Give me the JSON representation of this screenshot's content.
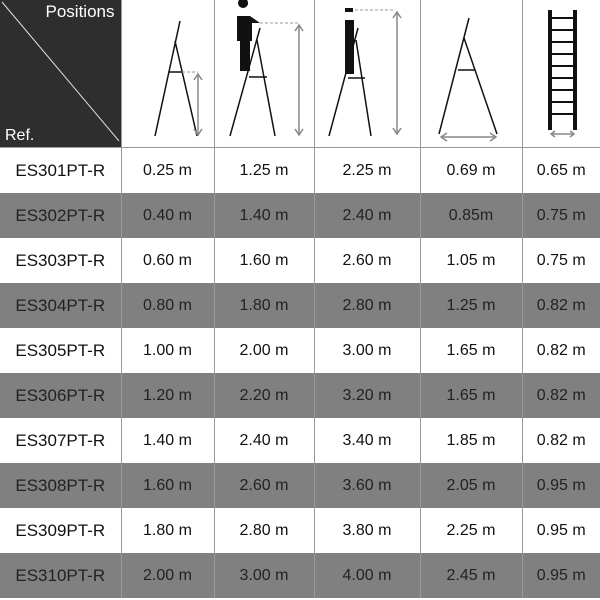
{
  "header": {
    "positions_label": "Positions",
    "ref_label": "Ref.",
    "columns": [
      {
        "icon": "stepladder-step-height-icon"
      },
      {
        "icon": "stepladder-working-height-man-icon"
      },
      {
        "icon": "stepladder-reach-height-man-icon"
      },
      {
        "icon": "stepladder-base-width-icon"
      },
      {
        "icon": "ladder-width-icon"
      }
    ]
  },
  "colors": {
    "gray_row": "#808080",
    "header_corner": "#2e2e2e",
    "arrow": "#888888"
  },
  "rows": [
    {
      "ref": "ES301PT-R",
      "values": [
        "0.25 m",
        "1.25 m",
        "2.25 m",
        "0.69 m",
        "0.65 m"
      ]
    },
    {
      "ref": "ES302PT-R",
      "values": [
        "0.40 m",
        "1.40 m",
        "2.40 m",
        "0.85m",
        "0.75 m"
      ]
    },
    {
      "ref": "ES303PT-R",
      "values": [
        "0.60 m",
        "1.60 m",
        "2.60 m",
        "1.05 m",
        "0.75 m"
      ]
    },
    {
      "ref": "ES304PT-R",
      "values": [
        "0.80 m",
        "1.80 m",
        "2.80 m",
        "1.25 m",
        "0.82 m"
      ]
    },
    {
      "ref": "ES305PT-R",
      "values": [
        "1.00 m",
        "2.00 m",
        "3.00 m",
        "1.65 m",
        "0.82 m"
      ]
    },
    {
      "ref": "ES306PT-R",
      "values": [
        "1.20 m",
        "2.20 m",
        "3.20 m",
        "1.65 m",
        "0.82 m"
      ]
    },
    {
      "ref": "ES307PT-R",
      "values": [
        "1.40 m",
        "2.40 m",
        "3.40 m",
        "1.85 m",
        "0.82 m"
      ]
    },
    {
      "ref": "ES308PT-R",
      "values": [
        "1.60 m",
        "2.60 m",
        "3.60 m",
        "2.05 m",
        "0.95 m"
      ]
    },
    {
      "ref": "ES309PT-R",
      "values": [
        "1.80 m",
        "2.80 m",
        "3.80 m",
        "2.25 m",
        "0.95 m"
      ]
    },
    {
      "ref": "ES310PT-R",
      "values": [
        "2.00 m",
        "3.00 m",
        "4.00 m",
        "2.45 m",
        "0.95 m"
      ]
    }
  ]
}
